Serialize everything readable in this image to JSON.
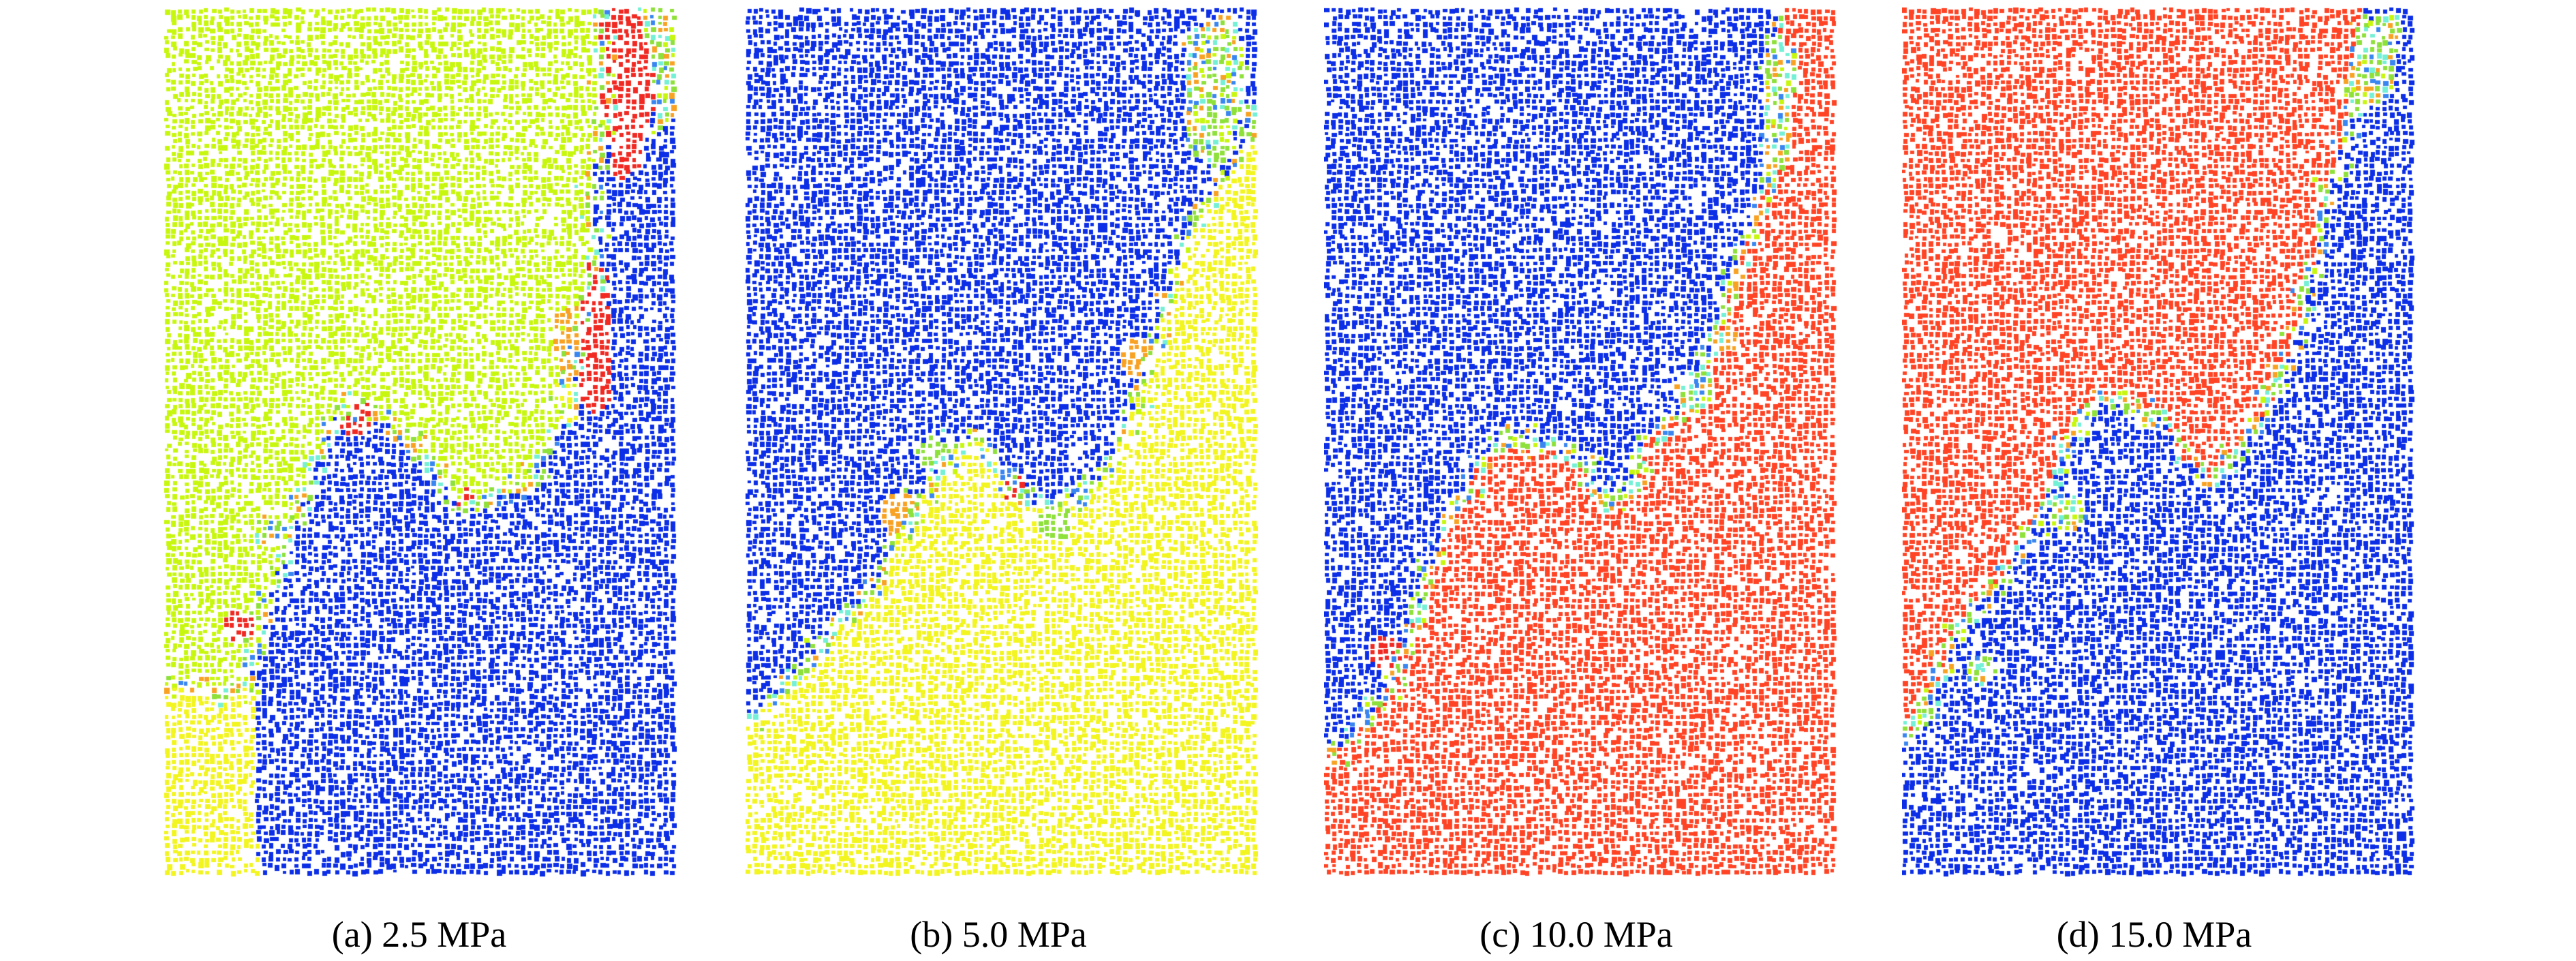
{
  "figure": {
    "panels": [
      {
        "id": "a",
        "caption": "(a) 2.5 MPa",
        "dominant_colors": [
          "#c8f70f",
          "#0b2ee6",
          "#f2f520",
          "#f02a22"
        ]
      },
      {
        "id": "b",
        "caption": "(b) 5.0 MPa",
        "dominant_colors": [
          "#0b2ee6",
          "#f2f520",
          "#8ee03a"
        ]
      },
      {
        "id": "c",
        "caption": "(c) 10.0 MPa",
        "dominant_colors": [
          "#0b2ee6",
          "#ff4426",
          "#8ee03a"
        ]
      },
      {
        "id": "d",
        "caption": "(d) 15.0 MPa",
        "dominant_colors": [
          "#ff4426",
          "#0b2ee6",
          "#8ee03a"
        ]
      }
    ]
  },
  "colors": {
    "blue": "#0b2ee6",
    "lime": "#c8f70f",
    "yellow": "#f2f520",
    "red": "#f02a22",
    "red_orange": "#ff4426",
    "green": "#8ee03a",
    "cyan": "#74f0d6",
    "orange": "#f8a224",
    "sky": "#3a86f0"
  }
}
